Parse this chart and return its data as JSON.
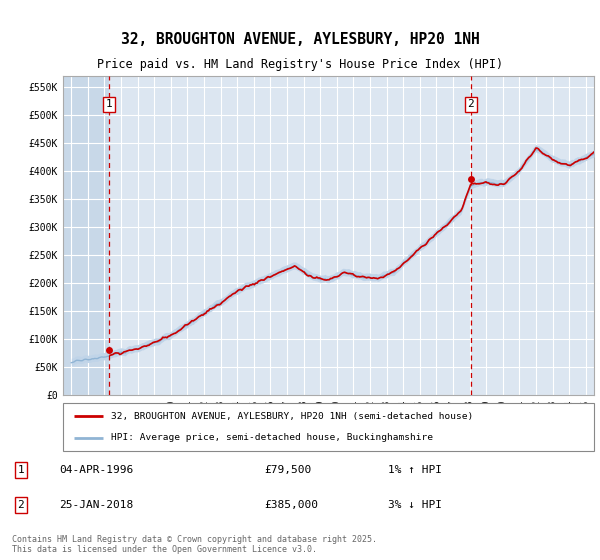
{
  "title": "32, BROUGHTON AVENUE, AYLESBURY, HP20 1NH",
  "subtitle": "Price paid vs. HM Land Registry's House Price Index (HPI)",
  "xlim": [
    1993.5,
    2025.5
  ],
  "ylim": [
    0,
    570000
  ],
  "yticks": [
    0,
    50000,
    100000,
    150000,
    200000,
    250000,
    300000,
    350000,
    400000,
    450000,
    500000,
    550000
  ],
  "ytick_labels": [
    "£0",
    "£50K",
    "£100K",
    "£150K",
    "£200K",
    "£250K",
    "£300K",
    "£350K",
    "£400K",
    "£450K",
    "£500K",
    "£550K"
  ],
  "xticks": [
    1994,
    1995,
    1996,
    1997,
    1998,
    1999,
    2000,
    2001,
    2002,
    2003,
    2004,
    2005,
    2006,
    2007,
    2008,
    2009,
    2010,
    2011,
    2012,
    2013,
    2014,
    2015,
    2016,
    2017,
    2018,
    2019,
    2020,
    2021,
    2022,
    2023,
    2024,
    2025
  ],
  "background_color": "#dce6f1",
  "hatch_color": "#c8d8e8",
  "grid_color": "#ffffff",
  "red_line_color": "#cc0000",
  "blue_line_color": "#90b4d4",
  "blue_fill_color": "#c0d4e8",
  "transaction1": {
    "year": 1996.27,
    "price": 79500,
    "label": "1"
  },
  "transaction2": {
    "year": 2018.07,
    "price": 385000,
    "label": "2"
  },
  "legend_red_label": "32, BROUGHTON AVENUE, AYLESBURY, HP20 1NH (semi-detached house)",
  "legend_blue_label": "HPI: Average price, semi-detached house, Buckinghamshire",
  "annot1_date": "04-APR-1996",
  "annot1_price": "£79,500",
  "annot1_hpi": "1% ↑ HPI",
  "annot2_date": "25-JAN-2018",
  "annot2_price": "£385,000",
  "annot2_hpi": "3% ↓ HPI",
  "footer": "Contains HM Land Registry data © Crown copyright and database right 2025.\nThis data is licensed under the Open Government Licence v3.0."
}
